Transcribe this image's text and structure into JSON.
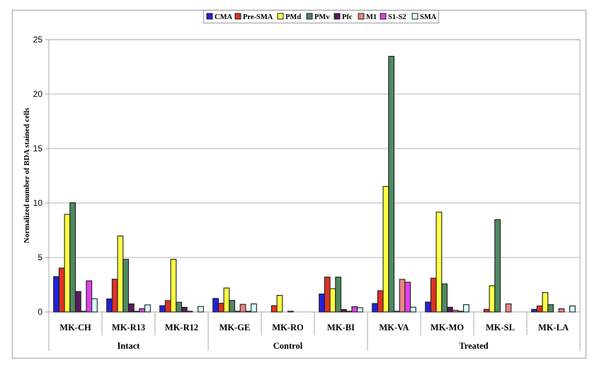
{
  "chart_data": {
    "type": "bar",
    "title": "",
    "xlabel": "",
    "ylabel": "Normalized number of BDA stained cells",
    "ylim": [
      0,
      25
    ],
    "yticks": [
      0,
      5,
      10,
      15,
      20,
      25
    ],
    "grid": true,
    "legend_position": "top",
    "categories": [
      "MK-CH",
      "MK-R13",
      "MK-R12",
      "MK-GE",
      "MK-RO",
      "MK-BI",
      "MK-VA",
      "MK-MO",
      "MK-SL",
      "MK-LA"
    ],
    "groups": [
      {
        "label": "Intact",
        "categories": [
          "MK-CH",
          "MK-R13",
          "MK-R12"
        ]
      },
      {
        "label": "Control",
        "categories": [
          "MK-GE",
          "MK-RO",
          "MK-BI"
        ]
      },
      {
        "label": "Treated",
        "categories": [
          "MK-VA",
          "MK-MO",
          "MK-SL",
          "MK-LA"
        ]
      }
    ],
    "series": [
      {
        "name": "CMA",
        "color": "#2222dd",
        "values": [
          3.25,
          1.2,
          0.58,
          1.24,
          0,
          1.65,
          0.78,
          0.91,
          0,
          0.24
        ]
      },
      {
        "name": "Pre-SMA",
        "color": "#dd3322",
        "values": [
          4.03,
          3.01,
          1.04,
          0.8,
          0.58,
          3.2,
          1.95,
          3.1,
          0.24,
          0.55
        ]
      },
      {
        "name": "PMd",
        "color": "#ffff44",
        "values": [
          8.96,
          6.97,
          4.83,
          2.2,
          1.52,
          2.14,
          11.52,
          9.16,
          2.4,
          1.78
        ]
      },
      {
        "name": "PMv",
        "color": "#4f8a5f",
        "values": [
          10.03,
          4.83,
          0.89,
          1.06,
          0,
          3.2,
          23.47,
          2.58,
          8.47,
          0.67
        ]
      },
      {
        "name": "Pfc",
        "color": "#5a1a5e",
        "values": [
          1.88,
          0.74,
          0.43,
          0.05,
          0.05,
          0.22,
          0.05,
          0.43,
          0,
          0
        ]
      },
      {
        "name": "M1",
        "color": "#e88482",
        "values": [
          0.05,
          0.05,
          0.05,
          0.7,
          0,
          0.05,
          2.99,
          0.15,
          0.74,
          0.29
        ]
      },
      {
        "name": "S1-S2",
        "color": "#e040e8",
        "values": [
          2.86,
          0.3,
          0,
          0.05,
          0,
          0.48,
          2.73,
          0.05,
          0,
          0
        ]
      },
      {
        "name": "SMA",
        "color": "#d4ffff",
        "values": [
          1.21,
          0.65,
          0.5,
          0.74,
          0,
          0.39,
          0.44,
          0.67,
          0,
          0.55
        ]
      }
    ]
  }
}
